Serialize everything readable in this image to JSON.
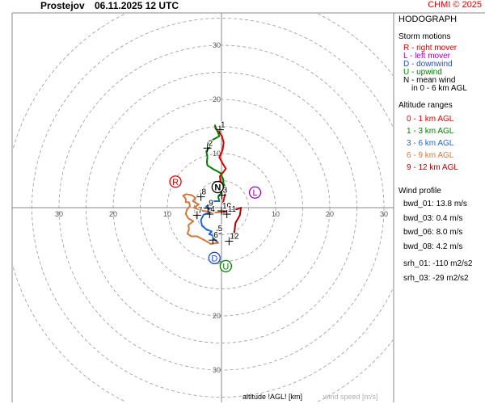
{
  "header": {
    "station": "Prostejov",
    "datetime": "06.11.2025 12 UTC",
    "copyright": "CHMI © 2025"
  },
  "panel": {
    "title": "HODOGRAPH",
    "storm_title": "Storm motions",
    "storm_items": [
      {
        "text": "R - right mover",
        "color": "#e00000"
      },
      {
        "text": "L - left mover",
        "color": "#a000c0"
      },
      {
        "text": "D - downwind",
        "color": "#2050c0"
      },
      {
        "text": "U - upwind",
        "color": "#008000"
      },
      {
        "text": "N - mean wind",
        "color": "#000000"
      }
    ],
    "mean_wind_note": "in 0 - 6 km AGL",
    "alt_title": "Altitude ranges",
    "alt_items": [
      {
        "text": "0 - 1 km AGL",
        "color": "#e00000"
      },
      {
        "text": "1 - 3 km AGL",
        "color": "#008000"
      },
      {
        "text": "3 - 6 km AGL",
        "color": "#1e64d2"
      },
      {
        "text": "6 - 9 km AGL",
        "color": "#d2783c"
      },
      {
        "text": "9 - 12 km AGL",
        "color": "#b40000"
      }
    ],
    "wp_title": "Wind profile",
    "wp_items": [
      "bwd_01: 13.8 m/s",
      "bwd_03: 0.4 m/s",
      "bwd_06: 8.0 m/s",
      "bwd_08: 4.2 m/s"
    ],
    "srh_items": [
      "srh_01: -110 m2/s2",
      "srh_03: -29 m2/s2"
    ]
  },
  "footer": {
    "altitude_label": "altitude !AGL! [km]",
    "speed_label": "wind speed [m/s]"
  },
  "chart_data": {
    "type": "hodograph",
    "title": "HODOGRAPH",
    "rings": [
      5,
      10,
      15,
      20,
      25,
      30,
      35,
      40
    ],
    "ring_labels": [
      "10",
      "20",
      "30"
    ],
    "axis_range": [
      -35,
      35
    ],
    "series": [
      {
        "name": "0 - 1 km AGL",
        "color": "#e00000",
        "points": [
          [
            0.2,
            0.6
          ],
          [
            0.5,
            1.8
          ],
          [
            0.8,
            3.2
          ],
          [
            0.5,
            4.2
          ],
          [
            -0.2,
            4.9
          ],
          [
            -0.3,
            5.8
          ],
          [
            0.3,
            6.5
          ],
          [
            0.8,
            7.2
          ],
          [
            0.2,
            8.2
          ],
          [
            -0.4,
            9.3
          ],
          [
            0.2,
            10.6
          ],
          [
            0.4,
            12.0
          ],
          [
            0.1,
            13.2
          ],
          [
            -0.5,
            14.0
          ],
          [
            -1.1,
            14.6
          ],
          [
            -1.2,
            15.2
          ]
        ]
      },
      {
        "name": "1 - 3 km AGL",
        "color": "#008000",
        "points": [
          [
            -1.2,
            15.2
          ],
          [
            -0.7,
            14.0
          ],
          [
            -0.4,
            13.2
          ],
          [
            -1.5,
            12.6
          ],
          [
            -2.5,
            12.0
          ],
          [
            -2.2,
            11.2
          ],
          [
            -2.8,
            10.4
          ],
          [
            -2.6,
            9.4
          ],
          [
            -2.7,
            8.4
          ],
          [
            -2.6,
            7.8
          ],
          [
            -1.5,
            7.1
          ],
          [
            -0.2,
            6.4
          ],
          [
            0.3,
            5.3
          ],
          [
            0.4,
            4.3
          ],
          [
            0.0,
            2.8
          ],
          [
            -0.6,
            2.0
          ],
          [
            -0.4,
            1.2
          ]
        ]
      },
      {
        "name": "3 - 6 km AGL",
        "color": "#1e64d2",
        "points": [
          [
            -0.4,
            1.2
          ],
          [
            -1.4,
            1.2
          ],
          [
            -2.1,
            0.7
          ],
          [
            -2.8,
            0.2
          ],
          [
            -2.3,
            -0.3
          ],
          [
            -1.8,
            -0.8
          ],
          [
            -3.3,
            -1.3
          ],
          [
            -3.8,
            -2.3
          ],
          [
            -3.6,
            -3.3
          ],
          [
            -2.8,
            -4.0
          ],
          [
            -1.8,
            -4.4
          ],
          [
            -2.3,
            -4.9
          ],
          [
            -1.1,
            -5.3
          ],
          [
            -1.4,
            -5.8
          ],
          [
            -0.8,
            -6.3
          ],
          [
            -0.6,
            -6.5
          ]
        ]
      },
      {
        "name": "6 - 9 km AGL",
        "color": "#d2783c",
        "points": [
          [
            -0.6,
            -6.5
          ],
          [
            -2.0,
            -6.7
          ],
          [
            -2.8,
            -6.2
          ],
          [
            -4.5,
            -5.3
          ],
          [
            -5.6,
            -5.3
          ],
          [
            -6.3,
            -4.8
          ],
          [
            -6.0,
            -4.0
          ],
          [
            -6.1,
            -3.2
          ],
          [
            -5.2,
            -2.5
          ],
          [
            -6.1,
            -2.0
          ],
          [
            -6.6,
            -1.2
          ],
          [
            -6.4,
            -0.4
          ],
          [
            -5.8,
            0.3
          ],
          [
            -6.0,
            1.0
          ],
          [
            -6.6,
            1.0
          ],
          [
            -6.6,
            1.6
          ],
          [
            -6.9,
            2.0
          ],
          [
            -7.1,
            2.2
          ],
          [
            -6.5,
            2.5
          ],
          [
            -5.5,
            2.3
          ],
          [
            -4.8,
            1.8
          ],
          [
            -5.3,
            1.2
          ],
          [
            -4.2,
            0.6
          ],
          [
            -5.1,
            0.0
          ],
          [
            -4.0,
            -0.4
          ],
          [
            -3.4,
            -0.6
          ],
          [
            -2.0,
            -0.8
          ],
          [
            -1.0,
            -0.9
          ],
          [
            0.4,
            -0.8
          ]
        ]
      },
      {
        "name": "9 - 12 km AGL",
        "color": "#b40000",
        "points": [
          [
            0.4,
            -0.8
          ],
          [
            1.6,
            -0.5
          ],
          [
            2.9,
            -0.3
          ],
          [
            3.6,
            0.0
          ],
          [
            3.4,
            -1.4
          ],
          [
            2.6,
            -2.8
          ],
          [
            2.4,
            -4.3
          ],
          [
            2.2,
            -5.3
          ],
          [
            1.8,
            -5.6
          ]
        ]
      }
    ],
    "height_marks": [
      {
        "label": "1",
        "x": -0.3,
        "y": 14.4
      },
      {
        "label": "2",
        "x": -2.6,
        "y": 11.0
      },
      {
        "label": "3",
        "x": 0.1,
        "y": 2.3
      },
      {
        "label": "4",
        "x": -2.2,
        "y": -1.2
      },
      {
        "label": "5",
        "x": -0.8,
        "y": -4.8
      },
      {
        "label": "6",
        "x": -1.6,
        "y": -6.0
      },
      {
        "label": "7",
        "x": -4.5,
        "y": -1.4
      },
      {
        "label": "8",
        "x": -3.8,
        "y": 2.0
      },
      {
        "label": "9",
        "x": -2.5,
        "y": -0.1
      },
      {
        "label": "10",
        "x": 0.0,
        "y": -0.6
      },
      {
        "label": "11",
        "x": 1.0,
        "y": -1.2
      },
      {
        "label": "12",
        "x": 1.4,
        "y": -6.2
      }
    ],
    "storm_motions": [
      {
        "label": "R",
        "x": -8.5,
        "y": 4.8,
        "color": "#e00000"
      },
      {
        "label": "L",
        "x": 6.2,
        "y": 2.8,
        "color": "#a000c0"
      },
      {
        "label": "D",
        "x": -1.3,
        "y": -9.3,
        "color": "#2050c0"
      },
      {
        "label": "U",
        "x": 0.8,
        "y": -10.8,
        "color": "#008000"
      },
      {
        "label": "N",
        "x": -0.7,
        "y": 3.8,
        "color": "#000000"
      }
    ]
  }
}
